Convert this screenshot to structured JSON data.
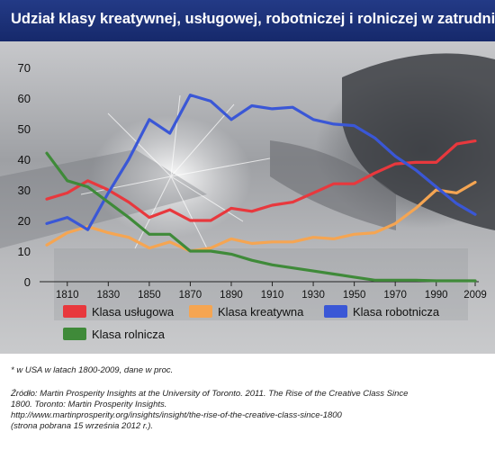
{
  "title": "Udział klasy kreatywnej, usługowej, robotniczej i rolniczej w zatrudnieniu*",
  "chart_data": {
    "type": "line",
    "x": [
      1800,
      1810,
      1820,
      1830,
      1840,
      1850,
      1860,
      1870,
      1880,
      1890,
      1900,
      1910,
      1920,
      1930,
      1940,
      1950,
      1960,
      1970,
      1980,
      1990,
      2000,
      2009
    ],
    "x_tick_labels": [
      "1810",
      "1830",
      "1850",
      "1870",
      "1890",
      "1910",
      "1930",
      "1950",
      "1970",
      "1990",
      "2009"
    ],
    "ylim": [
      0,
      70
    ],
    "y_ticks": [
      0,
      10,
      20,
      30,
      40,
      50,
      60,
      70
    ],
    "grid": false,
    "legend_position": "bottom",
    "series": [
      {
        "name": "Klasa usługowa",
        "color": "#e8383d",
        "values": [
          27,
          29,
          33,
          30,
          26,
          21,
          23.5,
          20,
          20,
          24,
          23,
          25,
          26,
          29,
          32,
          32,
          35.5,
          38.5,
          39,
          39,
          45,
          46
        ]
      },
      {
        "name": "Klasa kreatywna",
        "color": "#f5a552",
        "values": [
          12,
          16,
          18,
          16,
          14.5,
          11,
          13,
          10,
          11,
          14,
          12.5,
          13,
          13,
          14.5,
          14,
          15.5,
          16,
          19,
          24,
          30,
          29,
          32.5
        ]
      },
      {
        "name": "Klasa robotnicza",
        "color": "#3a57d6",
        "values": [
          19,
          21,
          17,
          29,
          40,
          53,
          48.5,
          61,
          59,
          53,
          57.5,
          56.5,
          57,
          53,
          51.5,
          51,
          47,
          41,
          36.5,
          31,
          25.5,
          22
        ]
      },
      {
        "name": "Klasa rolnicza",
        "color": "#3f8a39",
        "values": [
          42,
          33,
          31,
          26,
          21,
          15.5,
          15.5,
          10,
          10,
          9,
          7,
          5.5,
          4.5,
          3.5,
          2.5,
          1.5,
          0.5,
          0.5,
          0.5,
          0.3,
          0.3,
          0.3
        ]
      }
    ]
  },
  "footnote": "* w USA w latach 1800-2009, dane w proc.",
  "source": {
    "line1": "Źródło: Martin Prosperity Insights at the University of Toronto. 2011. The Rise of the Creative Class Since",
    "line2": "1800. Toronto: Martin Prosperity Insights.",
    "line3": "http://www.martinprosperity.org/insights/insight/the-rise-of-the-creative-class-since-1800",
    "line4": "(strona pobrana 15 września 2012 r.)."
  }
}
